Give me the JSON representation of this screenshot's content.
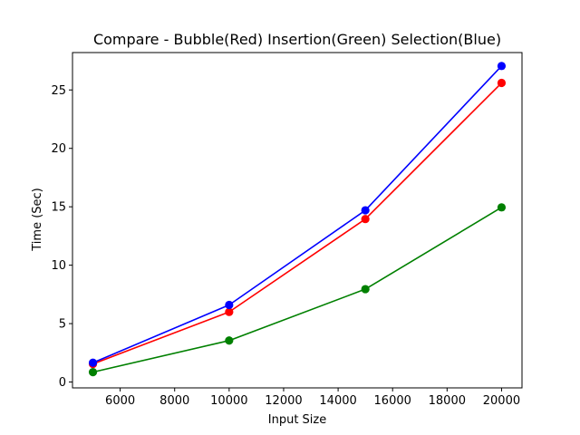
{
  "chart_data": {
    "type": "line",
    "title": "Compare - Bubble(Red) Insertion(Green) Selection(Blue)",
    "xlabel": "Input Size",
    "ylabel": "Time (Sec)",
    "x": [
      5000,
      10000,
      15000,
      20000
    ],
    "xlim": [
      4250,
      20750
    ],
    "ylim": [
      -0.5,
      28.2
    ],
    "xticks": [
      6000,
      8000,
      10000,
      12000,
      14000,
      16000,
      18000,
      20000
    ],
    "yticks": [
      0,
      5,
      10,
      15,
      20,
      25
    ],
    "grid": false,
    "series": [
      {
        "color": "#ff0000",
        "values": [
          1.55,
          6.0,
          13.95,
          25.6
        ]
      },
      {
        "color": "#008000",
        "values": [
          0.85,
          3.55,
          7.95,
          14.95
        ]
      },
      {
        "color": "#0000ff",
        "values": [
          1.65,
          6.6,
          14.7,
          27.05
        ]
      }
    ]
  }
}
